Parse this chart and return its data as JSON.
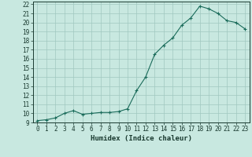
{
  "title": "",
  "xlabel": "Humidex (Indice chaleur)",
  "x_values": [
    0,
    1,
    2,
    3,
    4,
    5,
    6,
    7,
    8,
    9,
    10,
    11,
    12,
    13,
    14,
    15,
    16,
    17,
    18,
    19,
    20,
    21,
    22,
    23
  ],
  "y_values": [
    9.2,
    9.3,
    9.5,
    10.0,
    10.3,
    9.9,
    10.0,
    10.1,
    10.1,
    10.2,
    10.5,
    12.5,
    14.0,
    16.5,
    17.5,
    18.3,
    19.7,
    20.5,
    21.8,
    21.5,
    21.0,
    20.2,
    20.0,
    19.3
  ],
  "line_color": "#1a6b5a",
  "marker_color": "#1a6b5a",
  "bg_color": "#c8e8e0",
  "grid_color": "#a0c8c0",
  "axis_label_color": "#1a3a30",
  "ylim": [
    9,
    22.3
  ],
  "xlim": [
    -0.5,
    23.5
  ],
  "yticks": [
    9,
    10,
    11,
    12,
    13,
    14,
    15,
    16,
    17,
    18,
    19,
    20,
    21,
    22
  ],
  "xticks": [
    0,
    1,
    2,
    3,
    4,
    5,
    6,
    7,
    8,
    9,
    10,
    11,
    12,
    13,
    14,
    15,
    16,
    17,
    18,
    19,
    20,
    21,
    22,
    23
  ],
  "tick_fontsize": 5.5,
  "xlabel_fontsize": 6.5
}
